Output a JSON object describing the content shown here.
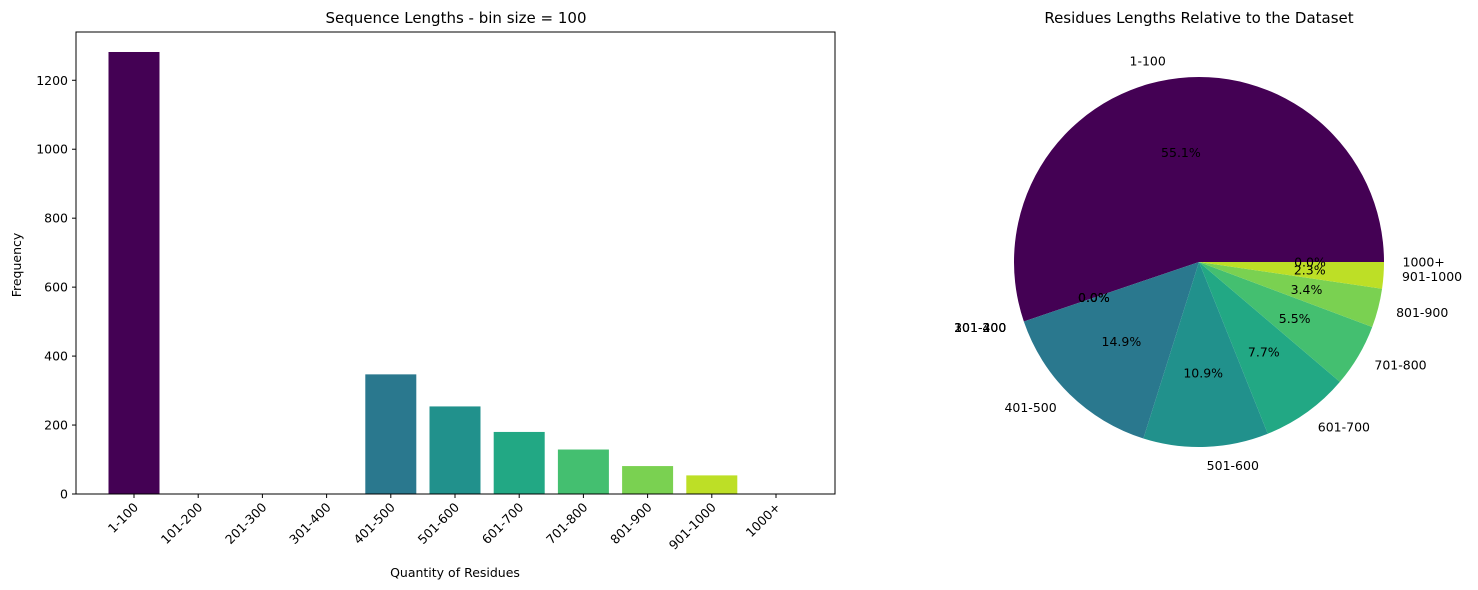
{
  "chart_data": [
    {
      "type": "bar",
      "title": "Sequence Lengths - bin size = 100",
      "xlabel": "Quantity of Residues",
      "ylabel": "Frequency",
      "categories": [
        "1-100",
        "101-200",
        "201-300",
        "301-400",
        "401-500",
        "501-600",
        "601-700",
        "701-800",
        "801-900",
        "901-1000",
        "1000+"
      ],
      "values": [
        1282,
        0,
        0,
        0,
        347,
        254,
        180,
        129,
        81,
        54,
        0
      ],
      "colors": [
        "#440154",
        "#482878",
        "#3e4989",
        "#31688e",
        "#2a788e",
        "#21918c",
        "#22a884",
        "#44bf70",
        "#7ad151",
        "#bddf26",
        "#fde725"
      ],
      "ylim": [
        0,
        1340
      ],
      "yticks": [
        0,
        200,
        400,
        600,
        800,
        1000,
        1200
      ],
      "grid": false
    },
    {
      "type": "pie",
      "title": "Residues Lengths Relative to the Dataset",
      "labels": [
        "1-100",
        "101-200",
        "201-300",
        "301-400",
        "401-500",
        "501-600",
        "601-700",
        "701-800",
        "801-900",
        "901-1000",
        "1000+"
      ],
      "values": [
        55.1,
        0.0,
        0.0,
        0.0,
        14.9,
        10.9,
        7.7,
        5.5,
        3.4,
        2.3,
        0.0
      ],
      "pct_labels": [
        "55.1%",
        "0.0%",
        "0.0%",
        "0.0%",
        "14.9%",
        "10.9%",
        "7.7%",
        "5.5%",
        "3.4%",
        "2.3%",
        "0.0%"
      ],
      "colors": [
        "#440154",
        "#482878",
        "#3e4989",
        "#31688e",
        "#2a788e",
        "#21918c",
        "#22a884",
        "#44bf70",
        "#7ad151",
        "#bddf26",
        "#fde725"
      ],
      "start_angle": 0,
      "direction": "counterclockwise"
    }
  ]
}
